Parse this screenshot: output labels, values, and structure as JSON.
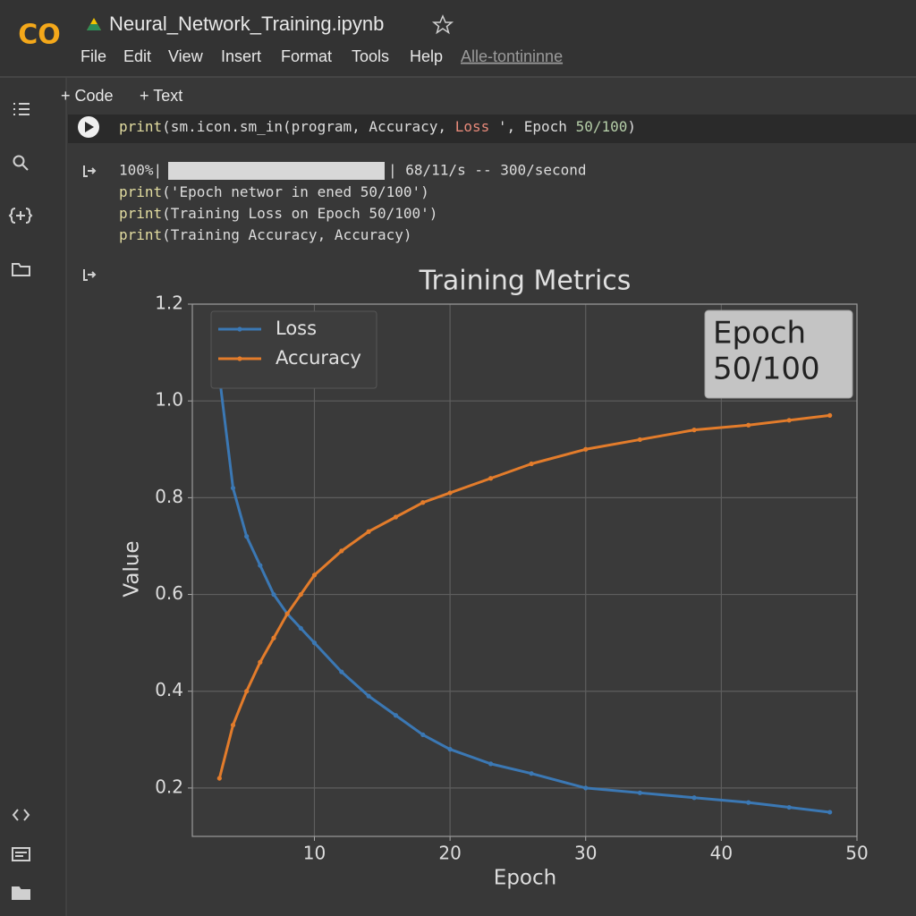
{
  "header": {
    "logo": "CO",
    "title": "Neural_Network_Training.ipynb",
    "menu": [
      "File",
      "Edit",
      "View",
      "Insert",
      "Format",
      "Tools",
      "Help"
    ],
    "link": "Alle-tontininne"
  },
  "toolbar": [
    "+ Code",
    "+ Text"
  ],
  "code_cell": [
    "print",
    "(sm.icon.sm_in(program, Accuracy, ",
    "Loss ",
    "', Epoch ",
    "50/100",
    ")"
  ],
  "output": {
    "progress_start": "100%|",
    "progress_end": "| 68/11/s -- 300/second",
    "lines": [
      [
        "print",
        "('Epoch networ in ened 50/100')"
      ],
      [
        "print",
        "(Training Loss on Epoch 50/100')"
      ],
      [
        "print",
        "(Training Accuracy, Accuracy)"
      ]
    ]
  },
  "chart_data": {
    "type": "line",
    "title": "Training Metrics",
    "xlabel": "Epoch",
    "ylabel": "Value",
    "x": [
      3,
      4,
      5,
      6,
      7,
      8,
      9,
      10,
      12,
      14,
      16,
      18,
      20,
      23,
      26,
      30,
      34,
      38,
      42,
      45,
      48
    ],
    "series": [
      {
        "name": "Loss",
        "color": "#3b78b4",
        "values": [
          1.05,
          0.82,
          0.72,
          0.66,
          0.6,
          0.56,
          0.53,
          0.5,
          0.44,
          0.39,
          0.35,
          0.31,
          0.28,
          0.25,
          0.23,
          0.2,
          0.19,
          0.18,
          0.17,
          0.16,
          0.15
        ]
      },
      {
        "name": "Accuracy",
        "color": "#e37c2b",
        "values": [
          0.22,
          0.33,
          0.4,
          0.46,
          0.51,
          0.56,
          0.6,
          0.64,
          0.69,
          0.73,
          0.76,
          0.79,
          0.81,
          0.84,
          0.87,
          0.9,
          0.92,
          0.94,
          0.95,
          0.96,
          0.97
        ]
      }
    ],
    "xlim": [
      1,
      50
    ],
    "xticks": [
      10,
      20,
      30,
      40,
      50
    ],
    "ylim": [
      0.1,
      1.2
    ],
    "yticks": [
      0.2,
      0.4,
      0.6,
      0.8,
      {
        "value": 1,
        "label": "1.0"
      },
      1.2
    ],
    "grid": true,
    "legend": "upper left",
    "annotation": [
      "Epoch",
      "50/100"
    ]
  }
}
